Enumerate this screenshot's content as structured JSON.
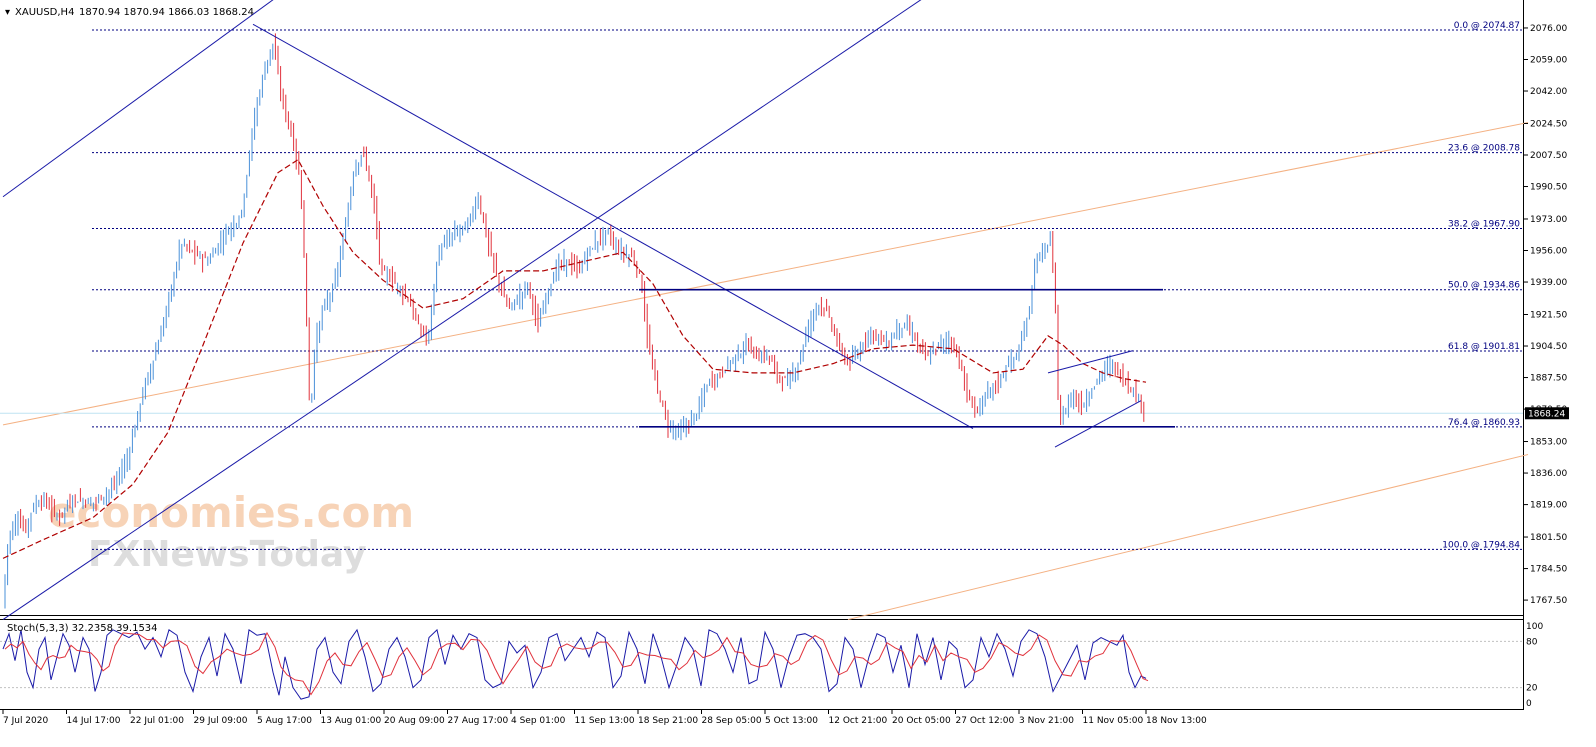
{
  "window": {
    "symbol_caption": "XAUUSD,H4",
    "ohlc_caption": "1870.94 1870.94 1866.03 1868.24"
  },
  "colors": {
    "bull": "#4a90d9",
    "bear": "#e0323c",
    "ma": "#b00000",
    "trendline": "#1a1aa8",
    "level": "#000080",
    "channel": "#f4b183",
    "stoch_main": "#1a1aa8",
    "stoch_signal": "#e0323c",
    "price_tag_bg": "#000000",
    "price_tag_fg": "#ffffff",
    "bid_line": "#bfe3f2"
  },
  "watermark": {
    "line1": "economies.com",
    "line2": "FXNewsToday"
  },
  "stoch_panel": {
    "caption": "Stoch(5,3,3) 32.2358 39.1534",
    "ticks": [
      "100",
      "80",
      "20",
      "0"
    ]
  },
  "chart_data": {
    "type": "candlestick",
    "timeframe": "H4",
    "ylim": [
      1760,
      2090
    ],
    "current_price": 1868.24,
    "current_price_label": "1868.24",
    "y_ticks": [
      "2076.00",
      "2059.00",
      "2042.00",
      "2024.50",
      "2007.50",
      "1990.50",
      "1973.00",
      "1956.00",
      "1939.00",
      "1921.50",
      "1904.50",
      "1887.50",
      "1870.50",
      "1853.00",
      "1836.00",
      "1819.00",
      "1801.50",
      "1784.50",
      "1767.50"
    ],
    "x_ticks": [
      "7 Jul 2020",
      "14 Jul 17:00",
      "22 Jul 01:00",
      "29 Jul 09:00",
      "5 Aug 17:00",
      "13 Aug 01:00",
      "20 Aug 09:00",
      "27 Aug 17:00",
      "4 Sep 01:00",
      "11 Sep 13:00",
      "18 Sep 21:00",
      "28 Sep 05:00",
      "5 Oct 13:00",
      "12 Oct 21:00",
      "20 Oct 05:00",
      "27 Oct 12:00",
      "3 Nov 21:00",
      "11 Nov 05:00",
      "18 Nov 13:00"
    ],
    "fib_levels": [
      {
        "label": "0.0 @ 2074.87",
        "price": 2074.87
      },
      {
        "label": "23.6 @ 2008.78",
        "price": 2008.78
      },
      {
        "label": "38.2 @ 1967.90",
        "price": 1967.9
      },
      {
        "label": "50.0 @ 1934.86",
        "price": 1934.86
      },
      {
        "label": "61.8 @ 1901.81",
        "price": 1901.81
      },
      {
        "label": "76.4 @ 1860.93",
        "price": 1860.93
      },
      {
        "label": "100.0 @ 1794.84",
        "price": 1794.84
      }
    ],
    "price_path": [
      [
        0,
        1768
      ],
      [
        5,
        1800
      ],
      [
        14,
        1812
      ],
      [
        22,
        1805
      ],
      [
        30,
        1818
      ],
      [
        40,
        1822
      ],
      [
        55,
        1812
      ],
      [
        70,
        1822
      ],
      [
        90,
        1820
      ],
      [
        110,
        1828
      ],
      [
        125,
        1845
      ],
      [
        140,
        1880
      ],
      [
        155,
        1905
      ],
      [
        168,
        1935
      ],
      [
        178,
        1960
      ],
      [
        190,
        1955
      ],
      [
        205,
        1950
      ],
      [
        222,
        1965
      ],
      [
        238,
        1975
      ],
      [
        252,
        2030
      ],
      [
        262,
        2055
      ],
      [
        270,
        2068
      ],
      [
        278,
        2040
      ],
      [
        290,
        2015
      ],
      [
        298,
        1990
      ],
      [
        302,
        1940
      ],
      [
        307,
        1865
      ],
      [
        312,
        1905
      ],
      [
        320,
        1925
      ],
      [
        330,
        1935
      ],
      [
        340,
        1960
      ],
      [
        350,
        1998
      ],
      [
        360,
        2010
      ],
      [
        370,
        1985
      ],
      [
        378,
        1945
      ],
      [
        390,
        1940
      ],
      [
        405,
        1930
      ],
      [
        415,
        1915
      ],
      [
        425,
        1908
      ],
      [
        435,
        1955
      ],
      [
        450,
        1965
      ],
      [
        465,
        1970
      ],
      [
        475,
        1985
      ],
      [
        485,
        1960
      ],
      [
        495,
        1940
      ],
      [
        505,
        1925
      ],
      [
        515,
        1930
      ],
      [
        525,
        1938
      ],
      [
        535,
        1915
      ],
      [
        545,
        1935
      ],
      [
        555,
        1948
      ],
      [
        565,
        1950
      ],
      [
        575,
        1945
      ],
      [
        585,
        1955
      ],
      [
        595,
        1962
      ],
      [
        605,
        1966
      ],
      [
        612,
        1958
      ],
      [
        620,
        1955
      ],
      [
        630,
        1952
      ],
      [
        638,
        1940
      ],
      [
        645,
        1905
      ],
      [
        655,
        1880
      ],
      [
        665,
        1862
      ],
      [
        675,
        1858
      ],
      [
        685,
        1862
      ],
      [
        695,
        1870
      ],
      [
        705,
        1885
      ],
      [
        715,
        1888
      ],
      [
        725,
        1895
      ],
      [
        735,
        1900
      ],
      [
        745,
        1905
      ],
      [
        755,
        1898
      ],
      [
        765,
        1900
      ],
      [
        775,
        1888
      ],
      [
        785,
        1885
      ],
      [
        795,
        1895
      ],
      [
        805,
        1915
      ],
      [
        815,
        1928
      ],
      [
        825,
        1922
      ],
      [
        835,
        1905
      ],
      [
        845,
        1895
      ],
      [
        855,
        1900
      ],
      [
        865,
        1912
      ],
      [
        875,
        1910
      ],
      [
        885,
        1905
      ],
      [
        895,
        1915
      ],
      [
        905,
        1915
      ],
      [
        915,
        1905
      ],
      [
        925,
        1898
      ],
      [
        935,
        1905
      ],
      [
        945,
        1908
      ],
      [
        955,
        1900
      ],
      [
        965,
        1875
      ],
      [
        975,
        1870
      ],
      [
        985,
        1880
      ],
      [
        995,
        1885
      ],
      [
        1005,
        1895
      ],
      [
        1015,
        1900
      ],
      [
        1025,
        1920
      ],
      [
        1032,
        1950
      ],
      [
        1040,
        1955
      ],
      [
        1048,
        1962
      ],
      [
        1052,
        1930
      ],
      [
        1056,
        1860
      ],
      [
        1062,
        1870
      ],
      [
        1068,
        1878
      ],
      [
        1078,
        1872
      ],
      [
        1088,
        1880
      ],
      [
        1098,
        1890
      ],
      [
        1108,
        1895
      ],
      [
        1118,
        1888
      ],
      [
        1128,
        1882
      ],
      [
        1136,
        1875
      ],
      [
        1143,
        1868.24
      ]
    ],
    "ma_path": [
      [
        0,
        1790
      ],
      [
        40,
        1800
      ],
      [
        90,
        1812
      ],
      [
        130,
        1830
      ],
      [
        165,
        1858
      ],
      [
        200,
        1905
      ],
      [
        240,
        1960
      ],
      [
        275,
        1998
      ],
      [
        295,
        2005
      ],
      [
        320,
        1980
      ],
      [
        350,
        1955
      ],
      [
        380,
        1940
      ],
      [
        420,
        1925
      ],
      [
        460,
        1930
      ],
      [
        500,
        1945
      ],
      [
        540,
        1945
      ],
      [
        580,
        1950
      ],
      [
        620,
        1955
      ],
      [
        650,
        1938
      ],
      [
        680,
        1910
      ],
      [
        710,
        1892
      ],
      [
        750,
        1890
      ],
      [
        790,
        1890
      ],
      [
        830,
        1895
      ],
      [
        870,
        1903
      ],
      [
        910,
        1905
      ],
      [
        950,
        1903
      ],
      [
        990,
        1890
      ],
      [
        1020,
        1892
      ],
      [
        1045,
        1910
      ],
      [
        1060,
        1905
      ],
      [
        1080,
        1895
      ],
      [
        1100,
        1890
      ],
      [
        1120,
        1887
      ],
      [
        1143,
        1885
      ]
    ],
    "trend_lines": [
      {
        "from": [
          0,
          1985
        ],
        "to": [
          300,
          2103
        ]
      },
      {
        "from": [
          0,
          1757
        ],
        "to": [
          975,
          2112
        ]
      },
      {
        "from": [
          250,
          2078
        ],
        "to": [
          970,
          1860
        ]
      },
      {
        "from": [
          636,
          1934.86
        ],
        "to": [
          1160,
          1934.86
        ]
      },
      {
        "from": [
          636,
          1860.93
        ],
        "to": [
          1172,
          1860.93
        ]
      },
      {
        "from": [
          1045,
          1890
        ],
        "to": [
          1130,
          1902
        ]
      },
      {
        "from": [
          1052,
          1850
        ],
        "to": [
          1138,
          1875
        ]
      }
    ],
    "channel_lines": [
      {
        "from": [
          0,
          1862
        ],
        "to": [
          1525,
          2025
        ]
      },
      {
        "from": [
          845,
          1757
        ],
        "to": [
          1525,
          1846
        ]
      }
    ],
    "stochastic": {
      "main": [
        [
          0,
          70
        ],
        [
          6,
          90
        ],
        [
          12,
          55
        ],
        [
          18,
          95
        ],
        [
          24,
          40
        ],
        [
          30,
          20
        ],
        [
          36,
          70
        ],
        [
          42,
          85
        ],
        [
          48,
          30
        ],
        [
          54,
          60
        ],
        [
          60,
          90
        ],
        [
          66,
          75
        ],
        [
          72,
          40
        ],
        [
          80,
          85
        ],
        [
          86,
          70
        ],
        [
          92,
          15
        ],
        [
          98,
          40
        ],
        [
          104,
          88
        ],
        [
          110,
          95
        ],
        [
          118,
          90
        ],
        [
          126,
          85
        ],
        [
          134,
          92
        ],
        [
          142,
          70
        ],
        [
          150,
          85
        ],
        [
          158,
          60
        ],
        [
          166,
          95
        ],
        [
          174,
          88
        ],
        [
          182,
          40
        ],
        [
          190,
          15
        ],
        [
          198,
          60
        ],
        [
          206,
          85
        ],
        [
          214,
          35
        ],
        [
          222,
          90
        ],
        [
          230,
          70
        ],
        [
          238,
          25
        ],
        [
          246,
          95
        ],
        [
          254,
          88
        ],
        [
          262,
          90
        ],
        [
          270,
          40
        ],
        [
          276,
          10
        ],
        [
          282,
          60
        ],
        [
          290,
          20
        ],
        [
          298,
          5
        ],
        [
          306,
          8
        ],
        [
          314,
          70
        ],
        [
          322,
          85
        ],
        [
          330,
          40
        ],
        [
          338,
          25
        ],
        [
          346,
          80
        ],
        [
          354,
          95
        ],
        [
          362,
          60
        ],
        [
          370,
          15
        ],
        [
          378,
          25
        ],
        [
          386,
          70
        ],
        [
          394,
          85
        ],
        [
          402,
          60
        ],
        [
          410,
          20
        ],
        [
          418,
          30
        ],
        [
          426,
          85
        ],
        [
          434,
          95
        ],
        [
          442,
          50
        ],
        [
          450,
          88
        ],
        [
          458,
          70
        ],
        [
          466,
          90
        ],
        [
          474,
          85
        ],
        [
          482,
          30
        ],
        [
          490,
          20
        ],
        [
          498,
          25
        ],
        [
          506,
          80
        ],
        [
          514,
          65
        ],
        [
          522,
          75
        ],
        [
          530,
          20
        ],
        [
          538,
          40
        ],
        [
          546,
          85
        ],
        [
          554,
          90
        ],
        [
          562,
          55
        ],
        [
          570,
          70
        ],
        [
          578,
          85
        ],
        [
          586,
          60
        ],
        [
          594,
          92
        ],
        [
          602,
          85
        ],
        [
          610,
          20
        ],
        [
          618,
          35
        ],
        [
          626,
          92
        ],
        [
          634,
          70
        ],
        [
          642,
          25
        ],
        [
          650,
          90
        ],
        [
          658,
          60
        ],
        [
          666,
          20
        ],
        [
          674,
          50
        ],
        [
          682,
          85
        ],
        [
          690,
          70
        ],
        [
          698,
          22
        ],
        [
          706,
          95
        ],
        [
          714,
          90
        ],
        [
          722,
          70
        ],
        [
          730,
          40
        ],
        [
          738,
          85
        ],
        [
          746,
          25
        ],
        [
          754,
          30
        ],
        [
          762,
          92
        ],
        [
          770,
          70
        ],
        [
          778,
          20
        ],
        [
          786,
          60
        ],
        [
          794,
          88
        ],
        [
          802,
          90
        ],
        [
          810,
          85
        ],
        [
          818,
          70
        ],
        [
          826,
          15
        ],
        [
          834,
          25
        ],
        [
          842,
          85
        ],
        [
          850,
          70
        ],
        [
          858,
          20
        ],
        [
          866,
          60
        ],
        [
          874,
          90
        ],
        [
          882,
          85
        ],
        [
          890,
          40
        ],
        [
          898,
          75
        ],
        [
          906,
          20
        ],
        [
          914,
          90
        ],
        [
          922,
          50
        ],
        [
          930,
          85
        ],
        [
          938,
          30
        ],
        [
          946,
          80
        ],
        [
          954,
          70
        ],
        [
          962,
          20
        ],
        [
          970,
          30
        ],
        [
          978,
          85
        ],
        [
          986,
          60
        ],
        [
          994,
          90
        ],
        [
          1002,
          70
        ],
        [
          1010,
          35
        ],
        [
          1018,
          80
        ],
        [
          1026,
          95
        ],
        [
          1034,
          90
        ],
        [
          1042,
          60
        ],
        [
          1050,
          15
        ],
        [
          1058,
          35
        ],
        [
          1066,
          55
        ],
        [
          1074,
          75
        ],
        [
          1082,
          30
        ],
        [
          1090,
          78
        ],
        [
          1098,
          85
        ],
        [
          1106,
          80
        ],
        [
          1114,
          75
        ],
        [
          1120,
          88
        ],
        [
          1126,
          40
        ],
        [
          1132,
          20
        ],
        [
          1138,
          35
        ],
        [
          1143,
          32
        ]
      ]
    }
  }
}
